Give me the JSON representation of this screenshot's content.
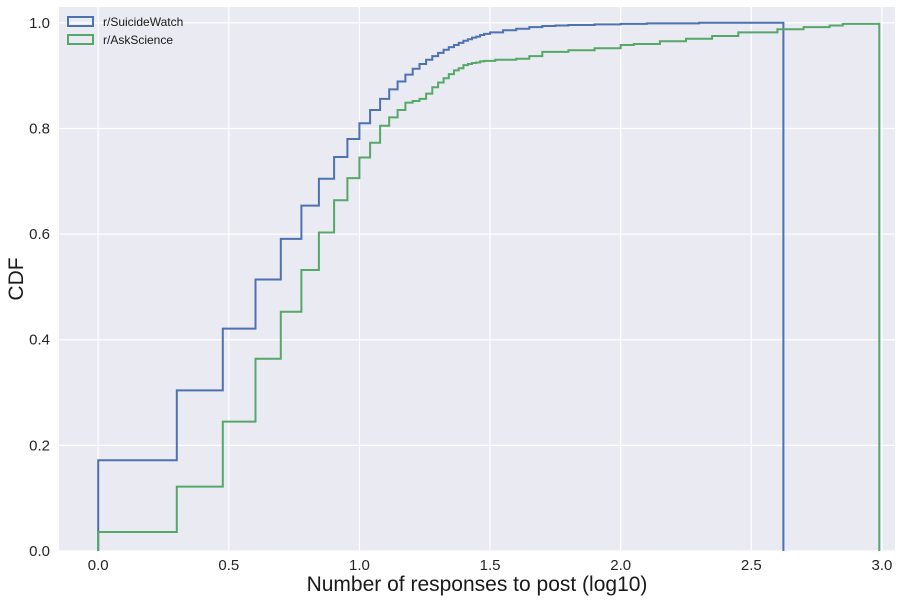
{
  "chart_data": {
    "type": "line",
    "subtype": "step-cdf",
    "title": "",
    "xlabel": "Number of responses to post (log10)",
    "ylabel": "CDF",
    "xlim": [
      -0.15,
      3.05
    ],
    "ylim": [
      0.0,
      1.03
    ],
    "xticks": [
      0.0,
      0.5,
      1.0,
      1.5,
      2.0,
      2.5,
      3.0
    ],
    "xtick_labels": [
      "0.0",
      "0.5",
      "1.0",
      "1.5",
      "2.0",
      "2.5",
      "3.0"
    ],
    "yticks": [
      0.0,
      0.2,
      0.4,
      0.6,
      0.8,
      1.0
    ],
    "ytick_labels": [
      "0.0",
      "0.2",
      "0.4",
      "0.6",
      "0.8",
      "1.0"
    ],
    "grid": true,
    "legend_position": "top-left",
    "background": "#eaeaf2",
    "series": [
      {
        "name": "r/SuicideWatch",
        "color": "#4c72b0",
        "x": [
          0.0,
          0.301,
          0.477,
          0.602,
          0.699,
          0.778,
          0.845,
          0.903,
          0.954,
          1.0,
          1.041,
          1.079,
          1.114,
          1.146,
          1.176,
          1.204,
          1.23,
          1.255,
          1.279,
          1.301,
          1.322,
          1.342,
          1.362,
          1.38,
          1.398,
          1.415,
          1.431,
          1.447,
          1.462,
          1.477,
          1.5,
          1.55,
          1.6,
          1.65,
          1.7,
          1.75,
          1.8,
          1.9,
          2.0,
          2.1,
          2.2,
          2.3,
          2.45,
          2.623
        ],
        "y": [
          0.172,
          0.304,
          0.421,
          0.514,
          0.591,
          0.654,
          0.705,
          0.746,
          0.78,
          0.81,
          0.835,
          0.856,
          0.874,
          0.889,
          0.902,
          0.913,
          0.922,
          0.93,
          0.937,
          0.943,
          0.949,
          0.954,
          0.958,
          0.962,
          0.966,
          0.969,
          0.972,
          0.974,
          0.977,
          0.979,
          0.982,
          0.986,
          0.989,
          0.992,
          0.994,
          0.995,
          0.996,
          0.997,
          0.998,
          0.999,
          0.999,
          1.0,
          1.0,
          1.0
        ]
      },
      {
        "name": "r/AskScience",
        "color": "#55a868",
        "x": [
          0.0,
          0.301,
          0.477,
          0.602,
          0.699,
          0.778,
          0.845,
          0.903,
          0.954,
          1.0,
          1.041,
          1.079,
          1.114,
          1.146,
          1.176,
          1.204,
          1.23,
          1.255,
          1.279,
          1.301,
          1.322,
          1.342,
          1.362,
          1.38,
          1.398,
          1.415,
          1.431,
          1.447,
          1.462,
          1.477,
          1.52,
          1.6,
          1.65,
          1.7,
          1.8,
          1.9,
          2.0,
          2.05,
          2.15,
          2.25,
          2.35,
          2.45,
          2.6,
          2.7,
          2.8,
          2.85,
          2.99
        ],
        "y": [
          0.036,
          0.122,
          0.245,
          0.364,
          0.453,
          0.532,
          0.603,
          0.664,
          0.706,
          0.745,
          0.773,
          0.805,
          0.821,
          0.835,
          0.849,
          0.852,
          0.856,
          0.866,
          0.878,
          0.887,
          0.895,
          0.903,
          0.91,
          0.914,
          0.92,
          0.922,
          0.924,
          0.925,
          0.927,
          0.928,
          0.93,
          0.932,
          0.937,
          0.945,
          0.948,
          0.952,
          0.958,
          0.96,
          0.965,
          0.97,
          0.975,
          0.982,
          0.988,
          0.992,
          0.995,
          0.998,
          1.0
        ]
      }
    ]
  }
}
